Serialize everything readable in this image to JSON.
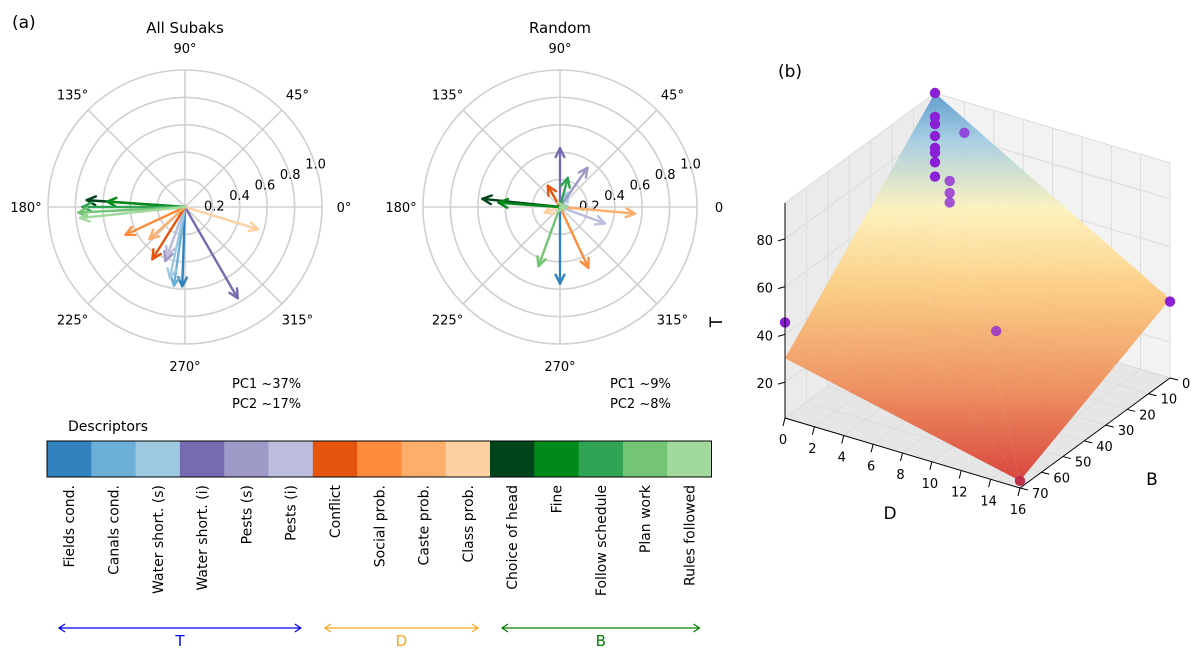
{
  "panel_labels": {
    "a": "(a)",
    "b": "(b)"
  },
  "chart_data": [
    {
      "type": "polar-arrows",
      "title": "All Subaks",
      "angle_ticks": [
        "0°",
        "45°",
        "90°",
        "135°",
        "180°",
        "225°",
        "270°",
        "315°"
      ],
      "radial_ticks": [
        "0.2",
        "0.4",
        "0.6",
        "0.8",
        "1.0"
      ],
      "rlim": [
        0,
        1.0
      ],
      "variance": {
        "pc1": "PC1 ~37%",
        "pc2": "PC2 ~17%"
      },
      "arrows": [
        {
          "descriptor": "Fields cond.",
          "angle": 268,
          "r": 0.58
        },
        {
          "descriptor": "Canals cond.",
          "angle": 262,
          "r": 0.58
        },
        {
          "descriptor": "Water short. (s)",
          "angle": 258,
          "r": 0.53
        },
        {
          "descriptor": "Water short. (i)",
          "angle": 300,
          "r": 0.77
        },
        {
          "descriptor": "Pests (s)",
          "angle": 250,
          "r": 0.42
        },
        {
          "descriptor": "Pests (i)",
          "angle": 250,
          "r": 0.38
        },
        {
          "descriptor": "Conflict",
          "angle": 238,
          "r": 0.45
        },
        {
          "descriptor": "Social prob.",
          "angle": 205,
          "r": 0.48
        },
        {
          "descriptor": "Caste prob.",
          "angle": 222,
          "r": 0.35
        },
        {
          "descriptor": "Class prob.",
          "angle": 343,
          "r": 0.56
        },
        {
          "descriptor": "Choice of head",
          "angle": 176,
          "r": 0.72
        },
        {
          "descriptor": "Fine",
          "angle": 176,
          "r": 0.57
        },
        {
          "descriptor": "Follow schedule",
          "angle": 180,
          "r": 0.75
        },
        {
          "descriptor": "Plan work",
          "angle": 183,
          "r": 0.78
        },
        {
          "descriptor": "Rules followed",
          "angle": 186,
          "r": 0.77
        }
      ]
    },
    {
      "type": "polar-arrows",
      "title": "Random",
      "angle_ticks": [
        "0",
        "45°",
        "90°",
        "135°",
        "180°",
        "225°",
        "270°",
        "315°"
      ],
      "radial_ticks": [
        "0.2",
        "0.4",
        "0.6",
        "0.8",
        "1.0"
      ],
      "rlim": [
        0,
        1.0
      ],
      "variance": {
        "pc1": "PC1 ~9%",
        "pc2": "PC2 ~8%"
      },
      "arrows": [
        {
          "descriptor": "Fields cond.",
          "angle": 270,
          "r": 0.56
        },
        {
          "descriptor": "Canals cond.",
          "angle": 0,
          "r": 0.06
        },
        {
          "descriptor": "Water short. (s)",
          "angle": 60,
          "r": 0.12
        },
        {
          "descriptor": "Water short. (i)",
          "angle": 90,
          "r": 0.43
        },
        {
          "descriptor": "Pests (s)",
          "angle": 55,
          "r": 0.35
        },
        {
          "descriptor": "Pests (i)",
          "angle": 340,
          "r": 0.35
        },
        {
          "descriptor": "Conflict",
          "angle": 120,
          "r": 0.18
        },
        {
          "descriptor": "Social prob.",
          "angle": 295,
          "r": 0.49
        },
        {
          "descriptor": "Caste prob.",
          "angle": 355,
          "r": 0.55
        },
        {
          "descriptor": "Class prob.",
          "angle": 200,
          "r": 0.12
        },
        {
          "descriptor": "Choice of head",
          "angle": 174,
          "r": 0.57
        },
        {
          "descriptor": "Fine",
          "angle": 176,
          "r": 0.45
        },
        {
          "descriptor": "Follow schedule",
          "angle": 75,
          "r": 0.22
        },
        {
          "descriptor": "Plan work",
          "angle": 250,
          "r": 0.46
        },
        {
          "descriptor": "Rules followed",
          "angle": 0,
          "r": 0.05
        }
      ]
    },
    {
      "type": "colorbar-legend",
      "title": "Descriptors",
      "items": [
        {
          "label": "Fields cond.",
          "color": "#3182bd"
        },
        {
          "label": "Canals cond.",
          "color": "#6baed6"
        },
        {
          "label": "Water short. (s)",
          "color": "#9ecae1"
        },
        {
          "label": "Water short. (i)",
          "color": "#756bb1"
        },
        {
          "label": "Pests (s)",
          "color": "#9e9ac8"
        },
        {
          "label": "Pests (i)",
          "color": "#bcbddc"
        },
        {
          "label": "Conflict",
          "color": "#e6550d"
        },
        {
          "label": "Social prob.",
          "color": "#fd8d3c"
        },
        {
          "label": "Caste prob.",
          "color": "#fdae6b"
        },
        {
          "label": "Class prob.",
          "color": "#fdd0a2"
        },
        {
          "label": "Choice of head",
          "color": "#00441b"
        },
        {
          "label": "Fine",
          "color": "#008a1a"
        },
        {
          "label": "Follow schedule",
          "color": "#31a354"
        },
        {
          "label": "Plan work",
          "color": "#74c476"
        },
        {
          "label": "Rules followed",
          "color": "#a1d99b"
        }
      ],
      "groups": [
        {
          "label": "T",
          "from": "Fields cond.",
          "to": "Pests (i)",
          "color": "#0000ee"
        },
        {
          "label": "D",
          "from": "Conflict",
          "to": "Class prob.",
          "color": "#f5a623"
        },
        {
          "label": "B",
          "from": "Choice of head",
          "to": "Rules followed",
          "color": "#008000"
        }
      ]
    },
    {
      "type": "3d-surface-scatter",
      "axes": {
        "D": {
          "label": "D",
          "range": [
            0,
            16
          ],
          "ticks": [
            "0",
            "2",
            "4",
            "6",
            "8",
            "10",
            "12",
            "14",
            "16"
          ]
        },
        "B": {
          "label": "B",
          "range": [
            0,
            70
          ],
          "ticks": [
            "0",
            "10",
            "20",
            "30",
            "40",
            "50",
            "60",
            "70"
          ]
        },
        "T": {
          "label": "T",
          "range": [
            5,
            95
          ],
          "ticks": [
            "20",
            "40",
            "60",
            "80"
          ]
        }
      },
      "surface": {
        "vertices": [
          {
            "D": 0,
            "B": 0,
            "T": 95
          },
          {
            "D": 0,
            "B": 70,
            "T": 30
          },
          {
            "D": 16,
            "B": 70,
            "T": 8
          },
          {
            "D": 16,
            "B": 0,
            "T": 38
          },
          {
            "D": 6,
            "B": 45,
            "T": 28
          }
        ],
        "colormap": "RdYlBu_r"
      },
      "points": [
        {
          "D": 0,
          "B": 0,
          "T": 95
        },
        {
          "D": 0,
          "B": 0,
          "T": 85
        },
        {
          "D": 0,
          "B": 0,
          "T": 82
        },
        {
          "D": 0,
          "B": 0,
          "T": 77
        },
        {
          "D": 0,
          "B": 0,
          "T": 72
        },
        {
          "D": 0,
          "B": 0,
          "T": 70
        },
        {
          "D": 0,
          "B": 0,
          "T": 66
        },
        {
          "D": 0,
          "B": 0,
          "T": 60
        },
        {
          "D": 2,
          "B": 0,
          "T": 82
        },
        {
          "D": 1,
          "B": 0,
          "T": 60
        },
        {
          "D": 1,
          "B": 0,
          "T": 55
        },
        {
          "D": 1,
          "B": 0,
          "T": 51
        },
        {
          "D": 0,
          "B": 70,
          "T": 45
        },
        {
          "D": 16,
          "B": 70,
          "T": 8
        },
        {
          "D": 16,
          "B": 0,
          "T": 37
        },
        {
          "D": 10,
          "B": 40,
          "T": 40
        }
      ]
    }
  ]
}
